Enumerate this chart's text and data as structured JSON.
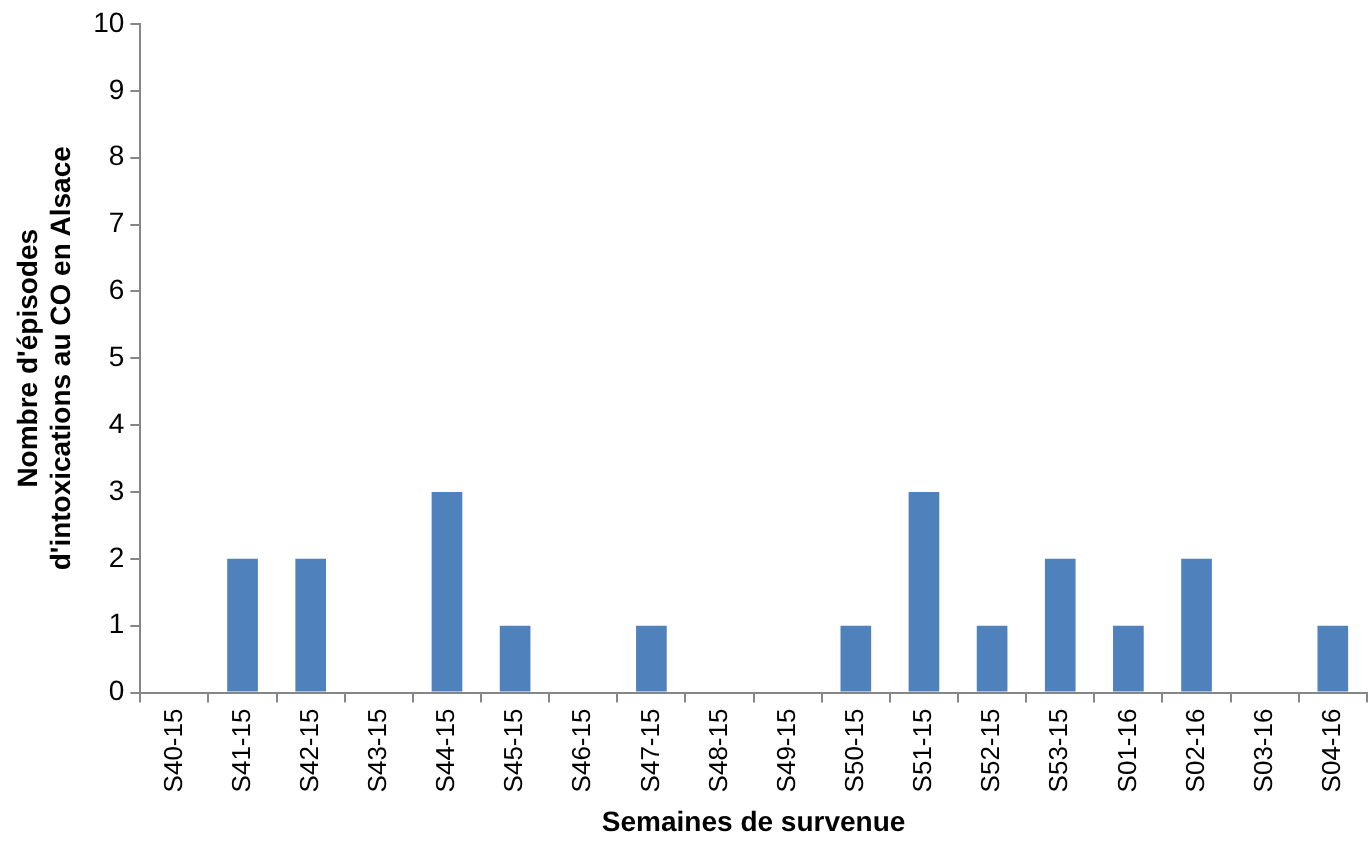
{
  "chart_data": {
    "type": "bar",
    "xlabel": "Semaines de survenue",
    "ylabel": "Nombre d'épisodes d'intoxications au CO en Alsace",
    "categories": [
      "S40-15",
      "S41-15",
      "S42-15",
      "S43-15",
      "S44-15",
      "S45-15",
      "S46-15",
      "S47-15",
      "S48-15",
      "S49-15",
      "S50-15",
      "S51-15",
      "S52-15",
      "S53-15",
      "S01-16",
      "S02-16",
      "S03-16",
      "S04-16"
    ],
    "values": [
      0,
      2,
      2,
      0,
      3,
      1,
      0,
      1,
      0,
      0,
      1,
      3,
      1,
      2,
      1,
      2,
      0,
      1
    ],
    "color": "#4f81bd",
    "ylim": [
      0,
      10
    ],
    "yticks": [
      0,
      1,
      2,
      3,
      4,
      5,
      6,
      7,
      8,
      9,
      10
    ],
    "grid": false,
    "legend": false
  }
}
